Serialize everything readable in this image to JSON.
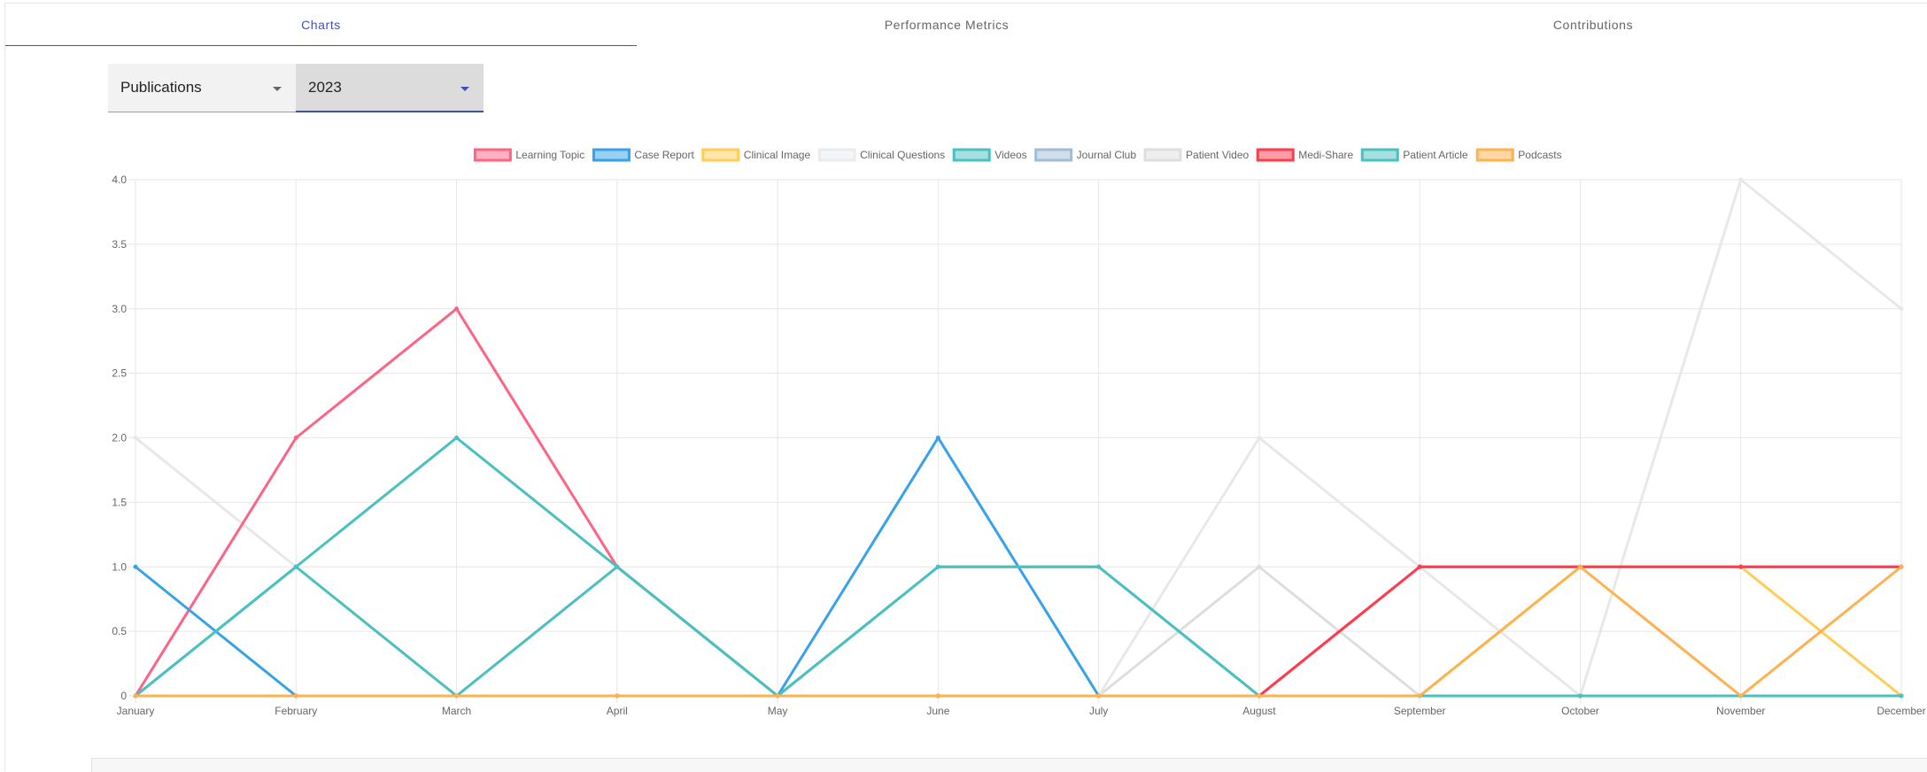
{
  "tabs": [
    {
      "label": "Charts",
      "active": true
    },
    {
      "label": "Performance Metrics",
      "active": false
    },
    {
      "label": "Contributions",
      "active": false
    }
  ],
  "filters": {
    "category": "Publications",
    "year": "2023"
  },
  "colors": {
    "accent": "#3f51b5"
  },
  "chart_data": {
    "type": "line",
    "categories": [
      "January",
      "February",
      "March",
      "April",
      "May",
      "June",
      "July",
      "August",
      "September",
      "October",
      "November",
      "December"
    ],
    "ylim": [
      0,
      4
    ],
    "yticks": [
      "0",
      "0.5",
      "1.0",
      "1.5",
      "2.0",
      "2.5",
      "3.0",
      "3.5",
      "4.0"
    ],
    "grid": true,
    "legend_position": "top",
    "series": [
      {
        "name": "Learning Topic",
        "color": "#ff6384",
        "fill": "rgba(255,99,132,0.5)",
        "values": [
          0,
          2,
          3,
          1,
          0,
          0,
          0,
          0,
          1,
          1,
          1,
          1
        ]
      },
      {
        "name": "Case Report",
        "color": "#36a2eb",
        "fill": "rgba(54,162,235,0.5)",
        "values": [
          1,
          0,
          0,
          0,
          0,
          2,
          0,
          0,
          0,
          0,
          0,
          0
        ]
      },
      {
        "name": "Clinical Image",
        "color": "#ffcd56",
        "fill": "rgba(255,205,86,0.5)",
        "values": [
          0,
          0,
          0,
          0,
          0,
          0,
          0,
          0,
          0,
          1,
          1,
          0
        ]
      },
      {
        "name": "Clinical Questions",
        "color": "#e9ecef",
        "fill": "rgba(233,236,239,0.5)",
        "values": [
          0,
          0,
          0,
          0,
          0,
          0,
          0,
          0,
          0,
          0,
          0,
          0
        ]
      },
      {
        "name": "Videos",
        "color": "#4bc0c0",
        "fill": "rgba(75,192,192,0.5)",
        "values": [
          0,
          1,
          2,
          1,
          0,
          1,
          1,
          0,
          0,
          0,
          0,
          0
        ]
      },
      {
        "name": "Journal Club",
        "color": "#9fbed6",
        "fill": "rgba(159,190,214,0.5)",
        "values": [
          0,
          0,
          0,
          0,
          0,
          0,
          0,
          0,
          0,
          0,
          0,
          0
        ]
      },
      {
        "name": "Patient Video",
        "color": "#dedede",
        "fill": "rgba(222,222,222,0.5)",
        "values": [
          0,
          0,
          0,
          0,
          0,
          0,
          0,
          1,
          0,
          0,
          0,
          0
        ]
      },
      {
        "name": "Medi-Share",
        "color": "#ff3b4d",
        "fill": "rgba(255,59,77,0.5)",
        "values": [
          0,
          0,
          0,
          0,
          0,
          0,
          0,
          0,
          1,
          1,
          1,
          1
        ]
      },
      {
        "name": "Patient Article",
        "color": "#4bc0c0",
        "fill": "rgba(75,192,192,0.5)",
        "values": [
          0,
          1,
          0,
          1,
          0,
          1,
          1,
          0,
          0,
          0,
          0,
          0
        ]
      },
      {
        "name": "Podcasts",
        "color": "#ffb14e",
        "fill": "rgba(255,177,78,0.5)",
        "values": [
          0,
          0,
          0,
          0,
          0,
          0,
          0,
          0,
          0,
          1,
          0,
          1
        ]
      },
      {
        "name": "",
        "color": "#e8e8e8",
        "values": [
          2,
          1,
          0,
          1,
          0,
          0,
          0,
          2,
          1,
          0,
          4,
          3
        ]
      }
    ]
  }
}
